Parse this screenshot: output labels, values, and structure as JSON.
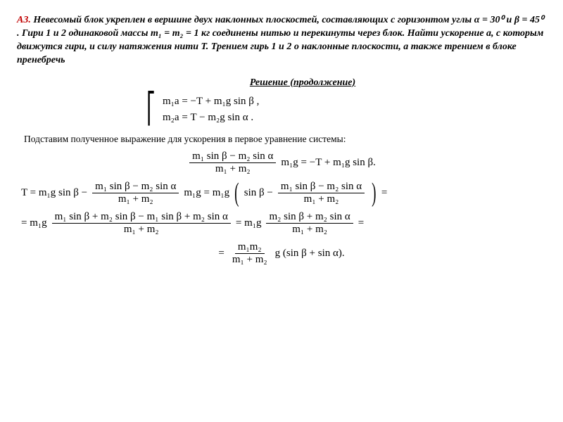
{
  "problem": {
    "number": "А3.",
    "text": "Невесомый блок укреплен в вершине двух наклонных плоскостей, составляющих с горизонтом углы α = 30⁰ и β = 45⁰ . Гири 1 и 2 одинаковой массы m₁ = m₂ = 1 кг соединены нитью и перекинуты через блок. Найти ускорение a, с которым движутся гири, и силу натяжения нити T. Трением гирь 1 и 2 о наклонные плоскости, а также трением в блоке пренебречь"
  },
  "solution_title": "Решение (продолжение)",
  "system": {
    "line1_lhs": "m₁a",
    "line1_rhs": "−T + m₁g sin β ,",
    "line2_lhs": "m₂a",
    "line2_rhs": "T − m₂g sin α ."
  },
  "explain_text": "Подставим полученное выражение для ускорения в первое уравнение системы:",
  "eq1": {
    "frac_num": "m₁ sin β − m₂ sin α",
    "frac_den": "m₁ + m₂",
    "after": "m₁g = −T + m₁g sin β."
  },
  "eq2": {
    "lead": "T = m₁g sin β −",
    "frac_num": "m₁ sin β − m₂ sin α",
    "frac_den": "m₁ + m₂",
    "mid": "m₁g =  m₁g",
    "paren_lead": "sin β −",
    "paren_frac_num": "m₁ sin β − m₂ sin α",
    "paren_frac_den": "m₁ + m₂",
    "tail": "="
  },
  "eq3": {
    "lead": "= m₁g",
    "frac1_num": "m₁ sin β + m₂ sin β − m₁ sin β + m₂ sin α",
    "frac1_den": "m₁ + m₂",
    "mid": "=  m₁g",
    "frac2_num": "m₂ sin β + m₂ sin α",
    "frac2_den": "m₁ + m₂",
    "tail": "="
  },
  "eq4": {
    "lead": "=",
    "frac_num": "m₁m₂",
    "frac_den": "m₁ + m₂",
    "tail": "g (sin β + sin α)."
  },
  "colors": {
    "number": "#c00000",
    "text": "#000000",
    "bg": "#ffffff"
  }
}
